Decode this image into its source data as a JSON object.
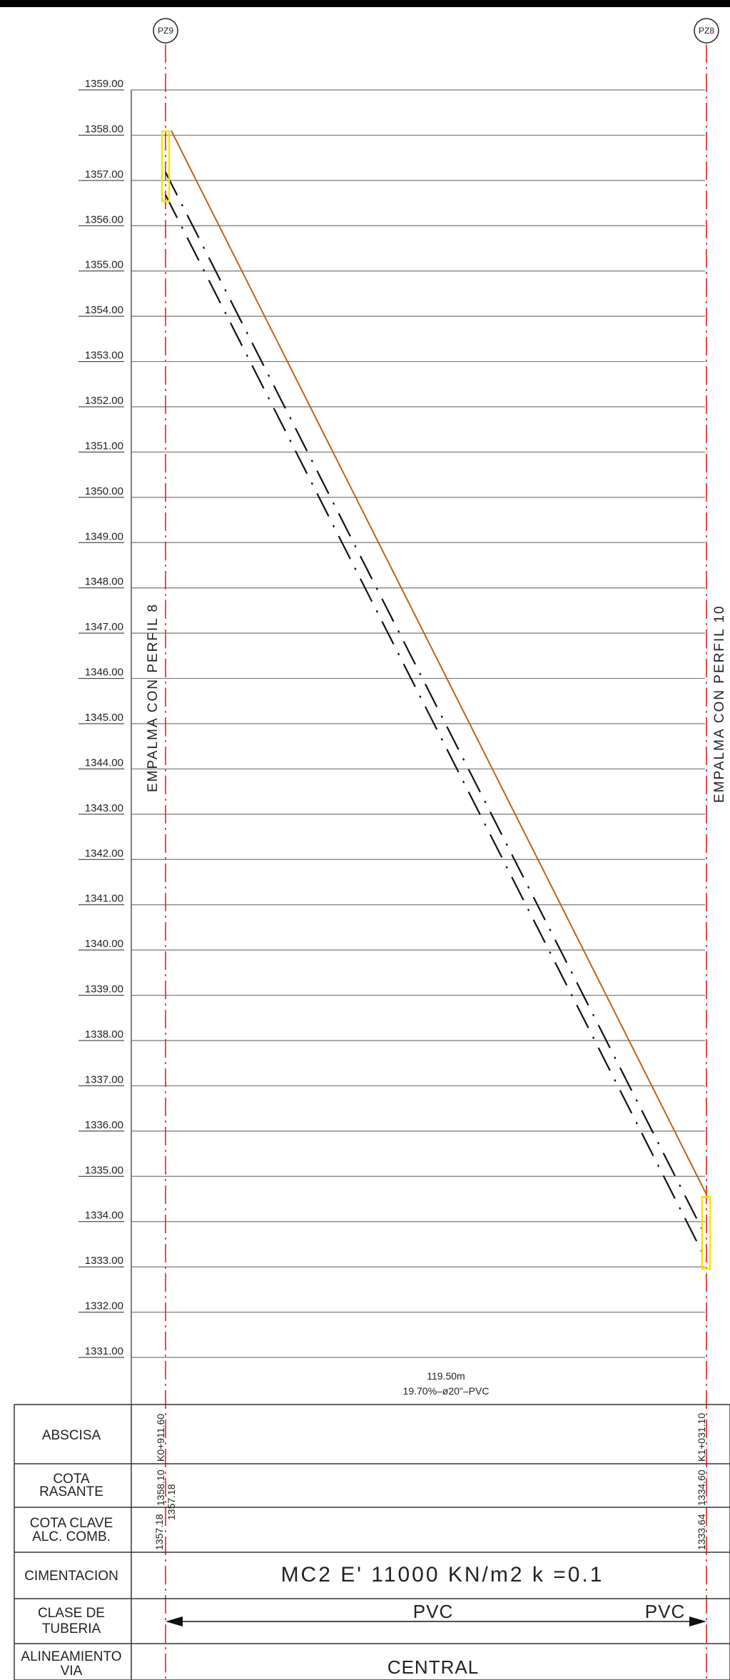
{
  "wells": {
    "left": {
      "id": "PZ9",
      "abscisa": "K0+911.60",
      "cota_rasante": "1358.10",
      "cota_clave": "1357.18",
      "alc_comb": "1357.18"
    },
    "right": {
      "id": "PZ8",
      "abscisa": "K1+031.10",
      "cota_rasante": "1334.60",
      "cota_clave": "1333.64"
    }
  },
  "side_notes": {
    "left": "EMPALMA CON PERFIL 8",
    "right": "EMPALMA CON PERFIL 10"
  },
  "segment": {
    "length": "119.50m",
    "spec": "19.70%–ø20\"–PVC"
  },
  "table": {
    "rows": [
      {
        "label_lines": [
          "ABSCISA"
        ]
      },
      {
        "label_lines": [
          "COTA",
          "RASANTE"
        ]
      },
      {
        "label_lines": [
          "COTA CLAVE",
          "ALC. COMB."
        ]
      },
      {
        "label_lines": [
          "CIMENTACION"
        ]
      },
      {
        "label_lines": [
          "CLASE DE",
          "TUBERIA"
        ]
      },
      {
        "label_lines": [
          "ALINEAMIENTO",
          "VIA"
        ]
      }
    ],
    "cimentacion": "MC2 E' 11000 KN/m2 k =0.1",
    "clase_tuberia_center": "PVC",
    "clase_tuberia_right": "PVC",
    "alineamiento": "CENTRAL"
  },
  "chart_data": {
    "type": "line",
    "elevation_levels": [
      "1359.00",
      "1358.00",
      "1357.00",
      "1356.00",
      "1355.00",
      "1354.00",
      "1353.00",
      "1352.00",
      "1351.00",
      "1350.00",
      "1349.00",
      "1348.00",
      "1347.00",
      "1346.00",
      "1345.00",
      "1344.00",
      "1343.00",
      "1342.00",
      "1341.00",
      "1340.00",
      "1339.00",
      "1338.00",
      "1337.00",
      "1336.00",
      "1335.00",
      "1334.00",
      "1333.00",
      "1332.00",
      "1331.00"
    ],
    "ylim": [
      1331,
      1359
    ],
    "x": [
      "K0+911.60",
      "K1+031.10"
    ],
    "series": [
      {
        "values": [
          1358.1,
          1334.6
        ],
        "color": "#b8651b",
        "style": "solid"
      },
      {
        "values": [
          1357.18,
          1333.64
        ],
        "color": "#111111",
        "style": "dash-dot"
      },
      {
        "values": [
          1356.68,
          1333.14
        ],
        "color": "#111111",
        "style": "dash-dot"
      }
    ],
    "grid": true,
    "colors": {
      "well_axis": "#e02020",
      "well_box": "#f2e600",
      "grid": "#777777"
    }
  }
}
